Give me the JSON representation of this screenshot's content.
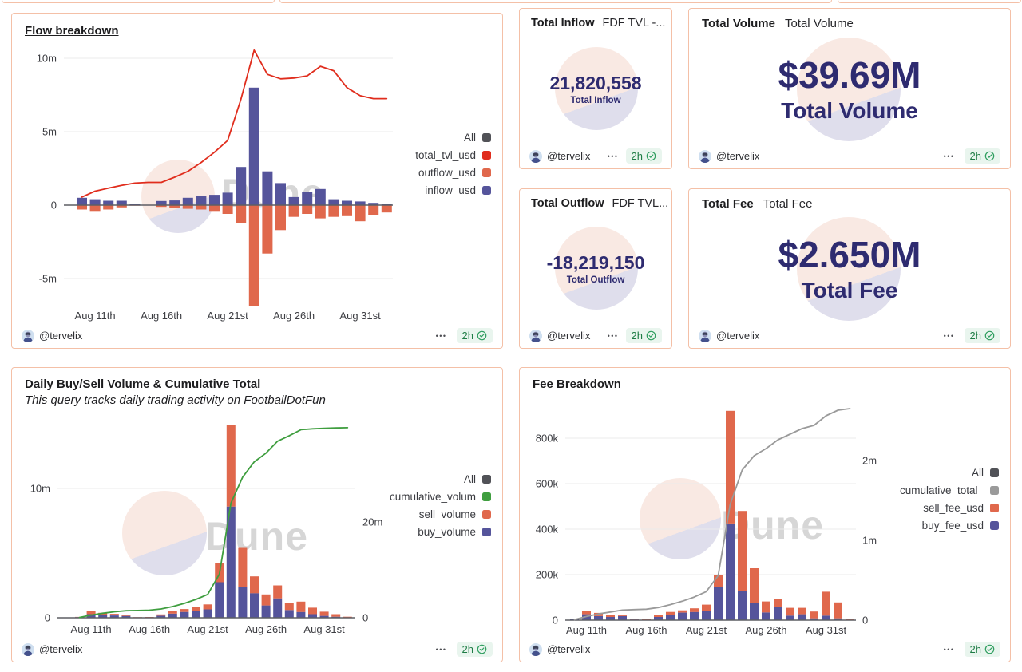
{
  "dashboard": {
    "author_handle": "@tervelix",
    "menu_dots": "•••",
    "refreshed_ago": "2h",
    "watermark_text": "Dune"
  },
  "colors": {
    "card_border": "#f4c0a7",
    "bar_buy_inflow": "#55549b",
    "bar_sell_outflow": "#e0684c",
    "line_tvl": "#e02d1d",
    "line_cumulative_volume": "#3f9e3f",
    "line_cumulative_fee": "#9a9a9a",
    "legend_all": "#515257",
    "counter_text": "#2e2b70",
    "badge_bg": "#e9f5ee",
    "badge_text": "#1e7c45"
  },
  "chart_data": [
    {
      "id": "flow-breakdown",
      "type": "bar+line",
      "title": "Flow breakdown",
      "stacked": false,
      "unit": "USD (millions)",
      "categories": [
        "Aug 10",
        "Aug 11",
        "Aug 12",
        "Aug 13",
        "Aug 14",
        "Aug 15",
        "Aug 16",
        "Aug 17",
        "Aug 18",
        "Aug 19",
        "Aug 20",
        "Aug 21",
        "Aug 22",
        "Aug 23",
        "Aug 24",
        "Aug 25",
        "Aug 26",
        "Aug 27",
        "Aug 28",
        "Aug 29",
        "Aug 30",
        "Aug 31",
        "Sep 1",
        "Sep 2"
      ],
      "x_ticks": [
        {
          "label": "Aug 11th",
          "index": 1
        },
        {
          "label": "Aug 16th",
          "index": 6
        },
        {
          "label": "Aug 21st",
          "index": 11
        },
        {
          "label": "Aug 26th",
          "index": 16
        },
        {
          "label": "Aug 31st",
          "index": 21
        }
      ],
      "left_ticks": [
        {
          "label": "10m",
          "value": 10
        },
        {
          "label": "5m",
          "value": 5
        },
        {
          "label": "0",
          "value": 0
        },
        {
          "label": "-5m",
          "value": -5
        }
      ],
      "series": [
        {
          "name": "inflow_usd",
          "type": "bar",
          "axis": "left",
          "color": "#55549b",
          "values": [
            0.5,
            0.4,
            0.3,
            0.3,
            0.06,
            0.02,
            0.28,
            0.32,
            0.5,
            0.6,
            0.7,
            0.85,
            2.6,
            8.0,
            2.3,
            1.5,
            0.55,
            0.9,
            1.1,
            0.4,
            0.3,
            0.25,
            0.15,
            0.1
          ]
        },
        {
          "name": "outflow_usd",
          "type": "bar",
          "axis": "left",
          "color": "#e0684c",
          "values": [
            -0.3,
            -0.45,
            -0.3,
            -0.15,
            -0.04,
            -0.02,
            -0.12,
            -0.18,
            -0.25,
            -0.3,
            -0.45,
            -0.6,
            -1.2,
            -6.9,
            -3.3,
            -1.7,
            -0.8,
            -0.6,
            -0.9,
            -0.8,
            -0.75,
            -1.1,
            -0.7,
            -0.5
          ]
        },
        {
          "name": "total_tvl_usd",
          "type": "line",
          "axis": "left",
          "color": "#e02d1d",
          "values": [
            0.55,
            0.95,
            1.15,
            1.35,
            1.5,
            1.55,
            1.55,
            1.9,
            2.3,
            2.9,
            3.6,
            4.4,
            7.2,
            10.55,
            8.9,
            8.6,
            8.65,
            8.8,
            9.45,
            9.15,
            8.0,
            7.45,
            7.25,
            7.25
          ]
        }
      ],
      "legend": [
        {
          "label": "All",
          "color": "#515257"
        },
        {
          "label": "total_tvl_usd",
          "color": "#e02d1d"
        },
        {
          "label": "outflow_usd",
          "color": "#e0684c"
        },
        {
          "label": "inflow_usd",
          "color": "#55549b"
        }
      ]
    },
    {
      "id": "daily-buy-sell-volume",
      "type": "bar+line",
      "title": "Daily Buy/Sell Volume & Cumulative Total",
      "subtitle": "This query tracks daily trading activity on FootballDotFun",
      "stacked": true,
      "unit": "USD (millions)",
      "categories": [
        "Aug 10",
        "Aug 11",
        "Aug 12",
        "Aug 13",
        "Aug 14",
        "Aug 15",
        "Aug 16",
        "Aug 17",
        "Aug 18",
        "Aug 19",
        "Aug 20",
        "Aug 21",
        "Aug 22",
        "Aug 23",
        "Aug 24",
        "Aug 25",
        "Aug 26",
        "Aug 27",
        "Aug 28",
        "Aug 29",
        "Aug 30",
        "Aug 31",
        "Sep 1",
        "Sep 2"
      ],
      "x_ticks": [
        {
          "label": "Aug 11th",
          "index": 1
        },
        {
          "label": "Aug 16th",
          "index": 6
        },
        {
          "label": "Aug 21st",
          "index": 11
        },
        {
          "label": "Aug 26th",
          "index": 16
        },
        {
          "label": "Aug 31st",
          "index": 21
        }
      ],
      "left_ticks": [
        {
          "label": "10m",
          "value": 10
        },
        {
          "label": "0",
          "value": 0
        }
      ],
      "right_ticks": [
        {
          "label": "20m",
          "value": 20
        },
        {
          "label": "0",
          "value": 0
        }
      ],
      "series": [
        {
          "name": "buy_volume",
          "type": "bar",
          "axis": "left",
          "color": "#55549b",
          "values": [
            0.05,
            0.28,
            0.22,
            0.18,
            0.14,
            0.03,
            0.02,
            0.16,
            0.32,
            0.45,
            0.55,
            0.65,
            2.75,
            8.6,
            2.4,
            1.9,
            0.95,
            1.5,
            0.6,
            0.45,
            0.28,
            0.15,
            0.08,
            0.03
          ]
        },
        {
          "name": "sell_volume",
          "type": "bar",
          "axis": "left",
          "color": "#e0684c",
          "values": [
            0.02,
            0.22,
            0.16,
            0.12,
            0.08,
            0.02,
            0.04,
            0.1,
            0.18,
            0.22,
            0.28,
            0.38,
            1.45,
            6.3,
            3.0,
            1.3,
            0.85,
            1.0,
            0.55,
            0.8,
            0.5,
            0.32,
            0.2,
            0.05
          ]
        },
        {
          "name": "cumulative_volume",
          "type": "line",
          "axis": "right",
          "color": "#3f9e3f",
          "values": [
            0.07,
            0.57,
            0.95,
            1.25,
            1.47,
            1.52,
            1.58,
            1.84,
            2.34,
            3.0,
            3.84,
            4.87,
            9.07,
            23.97,
            29.37,
            32.57,
            34.37,
            36.87,
            38.02,
            39.27,
            39.45,
            39.55,
            39.63,
            39.69
          ]
        }
      ],
      "legend": [
        {
          "label": "All",
          "color": "#515257"
        },
        {
          "label": "cumulative_volum",
          "color": "#3f9e3f"
        },
        {
          "label": "sell_volume",
          "color": "#e0684c"
        },
        {
          "label": "buy_volume",
          "color": "#55549b"
        }
      ]
    },
    {
      "id": "fee-breakdown",
      "type": "bar+line",
      "title": "Fee Breakdown",
      "stacked": true,
      "unit": "USD (thousands)",
      "categories": [
        "Aug 10",
        "Aug 11",
        "Aug 12",
        "Aug 13",
        "Aug 14",
        "Aug 15",
        "Aug 16",
        "Aug 17",
        "Aug 18",
        "Aug 19",
        "Aug 20",
        "Aug 21",
        "Aug 22",
        "Aug 23",
        "Aug 24",
        "Aug 25",
        "Aug 26",
        "Aug 27",
        "Aug 28",
        "Aug 29",
        "Aug 30",
        "Aug 31",
        "Sep 1",
        "Sep 2"
      ],
      "x_ticks": [
        {
          "label": "Aug 11th",
          "index": 1
        },
        {
          "label": "Aug 16th",
          "index": 6
        },
        {
          "label": "Aug 21st",
          "index": 11
        },
        {
          "label": "Aug 26th",
          "index": 16
        },
        {
          "label": "Aug 31st",
          "index": 21
        }
      ],
      "left_ticks": [
        {
          "label": "800k",
          "value": 800
        },
        {
          "label": "600k",
          "value": 600
        },
        {
          "label": "400k",
          "value": 400
        },
        {
          "label": "200k",
          "value": 200
        },
        {
          "label": "0",
          "value": 0
        }
      ],
      "right_ticks": [
        {
          "label": "2m",
          "value": 2000
        },
        {
          "label": "1m",
          "value": 1000
        },
        {
          "label": "0",
          "value": 0
        }
      ],
      "series": [
        {
          "name": "buy_fee_usd",
          "type": "bar",
          "axis": "left",
          "color": "#55549b",
          "values": [
            4,
            26,
            18,
            14,
            18,
            3,
            2,
            14,
            24,
            33,
            36,
            40,
            145,
            425,
            128,
            76,
            34,
            56,
            20,
            26,
            8,
            20,
            8,
            2
          ]
        },
        {
          "name": "sell_fee_usd",
          "type": "bar",
          "axis": "left",
          "color": "#e0684c",
          "values": [
            2,
            14,
            14,
            10,
            6,
            3,
            3,
            7,
            12,
            10,
            16,
            28,
            55,
            495,
            352,
            152,
            48,
            38,
            34,
            28,
            30,
            105,
            70,
            3
          ]
        },
        {
          "name": "cumulative_total_fee",
          "type": "line",
          "axis": "right",
          "color": "#9a9a9a",
          "values": [
            6,
            46,
            78,
            102,
            126,
            132,
            137,
            158,
            194,
            237,
            289,
            357,
            557,
            1450,
            1880,
            2060,
            2150,
            2260,
            2330,
            2400,
            2440,
            2560,
            2630,
            2650
          ]
        }
      ],
      "legend": [
        {
          "label": "All",
          "color": "#515257"
        },
        {
          "label": "cumulative_total_",
          "color": "#9a9a9a"
        },
        {
          "label": "sell_fee_usd",
          "color": "#e0684c"
        },
        {
          "label": "buy_fee_usd",
          "color": "#55549b"
        }
      ]
    },
    {
      "id": "total-inflow",
      "type": "counter",
      "title": "Total Inflow",
      "query_title": "FDF TVL -...",
      "value": "21,820,558",
      "value_label": "Total Inflow"
    },
    {
      "id": "total-volume",
      "type": "counter",
      "title": "Total Volume",
      "query_title": "Total Volume",
      "value": "$39.69M",
      "value_label": "Total Volume"
    },
    {
      "id": "total-outflow",
      "type": "counter",
      "title": "Total Outflow",
      "query_title": "FDF TVL...",
      "value": "-18,219,150",
      "value_label": "Total Outflow"
    },
    {
      "id": "total-fee",
      "type": "counter",
      "title": "Total Fee",
      "query_title": "Total Fee",
      "value": "$2.650M",
      "value_label": "Total Fee"
    }
  ]
}
